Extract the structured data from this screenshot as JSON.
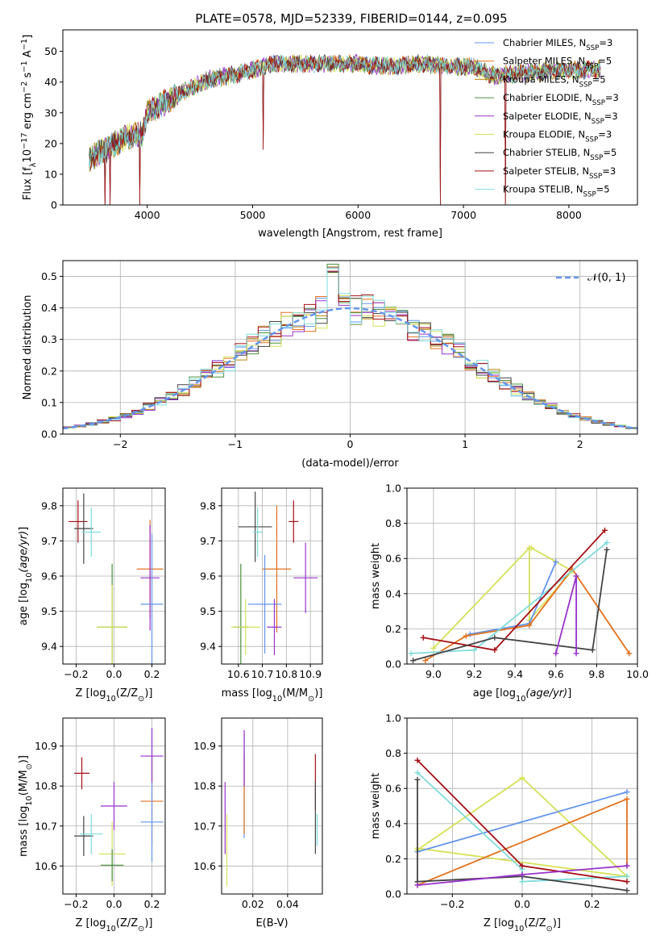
{
  "title": "PLATE=0578, MJD=52339, FIBERID=0144, z=0.095",
  "colors": {
    "Chabrier MILES": "#6495ed",
    "Salpeter MILES": "#e2711d",
    "Kroupa MILES": "#b8860b",
    "Chabrier ELODIE": "#4a8f3c",
    "Salpeter ELODIE": "#9932cc",
    "Kroupa ELODIE": "#d4e157",
    "Chabrier STELIB": "#444444",
    "Salpeter STELIB": "#a50f15",
    "Kroupa STELIB": "#7fdbdb"
  },
  "legend_spectrum": [
    {
      "name": "Chabrier MILES",
      "nssp": "3"
    },
    {
      "name": "Salpeter MILES",
      "nssp": "5"
    },
    {
      "name": "Kroupa MILES",
      "nssp": "5"
    },
    {
      "name": "Chabrier ELODIE",
      "nssp": "3"
    },
    {
      "name": "Salpeter ELODIE",
      "nssp": "3"
    },
    {
      "name": "Kroupa ELODIE",
      "nssp": "3"
    },
    {
      "name": "Chabrier STELIB",
      "nssp": "5"
    },
    {
      "name": "Salpeter STELIB",
      "nssp": "3"
    },
    {
      "name": "Kroupa STELIB",
      "nssp": "5"
    }
  ],
  "chart_data": [
    {
      "id": "spectrum",
      "type": "line",
      "title": "PLATE=0578, MJD=52339, FIBERID=0144, z=0.095",
      "xlabel": "wavelength [Angstrom, rest frame]",
      "ylabel": "Flux [f_λ10^-17 erg cm^-2 s^-1 A^-1]",
      "xlim": [
        3200,
        8650
      ],
      "ylim": [
        0,
        57
      ],
      "xticks": [
        4000,
        5000,
        6000,
        7000,
        8000
      ],
      "yticks": [
        0,
        10,
        20,
        30,
        40,
        50
      ],
      "xrange": [
        3450,
        8300
      ],
      "continuum": [
        [
          3450,
          15
        ],
        [
          3600,
          18
        ],
        [
          3800,
          22
        ],
        [
          3950,
          23
        ],
        [
          4000,
          30
        ],
        [
          4300,
          36
        ],
        [
          4600,
          41
        ],
        [
          4900,
          43
        ],
        [
          5200,
          46
        ],
        [
          5500,
          46
        ],
        [
          5800,
          46
        ],
        [
          6000,
          46
        ],
        [
          6300,
          45
        ],
        [
          6600,
          46
        ],
        [
          6900,
          45
        ],
        [
          7100,
          45
        ],
        [
          7300,
          42
        ],
        [
          7600,
          43
        ],
        [
          8000,
          44
        ],
        [
          8300,
          44
        ]
      ],
      "dips": [
        [
          3600,
          0
        ],
        [
          3650,
          0
        ],
        [
          3930,
          0
        ],
        [
          5100,
          18
        ],
        [
          6780,
          0
        ],
        [
          7400,
          0
        ]
      ],
      "grid": false
    },
    {
      "id": "residuals",
      "type": "histogram",
      "xlabel": "(data-model)/error",
      "ylabel": "Normed distribution",
      "xlim": [
        -2.5,
        2.5
      ],
      "ylim": [
        0,
        0.55
      ],
      "xticks": [
        -2,
        -1,
        0,
        1,
        2
      ],
      "yticks": [
        0,
        0.1,
        0.2,
        0.3,
        0.4,
        0.5
      ],
      "legend": "𝒩(0, 1)",
      "legend_position": "top-right",
      "grid": true,
      "bin_width": 0.1
    },
    {
      "id": "age_vs_Z",
      "type": "errorbar",
      "xlabel": "Z [log10(Z/Z⊙)]",
      "ylabel": "age  [log10(age/yr)]",
      "xlim": [
        -0.27,
        0.27
      ],
      "ylim": [
        9.35,
        9.85
      ],
      "xticks": [
        -0.2,
        0,
        0.2
      ],
      "xticklabels": [
        "−0.2",
        "0.0",
        "0.2"
      ],
      "yticks": [
        9.4,
        9.5,
        9.6,
        9.7,
        9.8
      ],
      "grid": true,
      "points": [
        {
          "s": "Salpeter STELIB",
          "x": -0.19,
          "y": 9.755,
          "ex": 0.05,
          "ey": 0.06
        },
        {
          "s": "Chabrier STELIB",
          "x": -0.16,
          "y": 9.735,
          "ex": 0.05,
          "ey": 0.1
        },
        {
          "s": "Kroupa STELIB",
          "x": -0.12,
          "y": 9.725,
          "ex": 0.05,
          "ey": 0.07
        },
        {
          "s": "Chabrier ELODIE",
          "x": -0.01,
          "y": 9.455,
          "ex": 0.08,
          "ey": 0.18
        },
        {
          "s": "Kroupa ELODIE",
          "x": -0.01,
          "y": 9.455,
          "ex": 0.08,
          "ey": 0.12
        },
        {
          "s": "Salpeter MILES",
          "x": 0.19,
          "y": 9.62,
          "ex": 0.07,
          "ey": 0.14
        },
        {
          "s": "Salpeter ELODIE",
          "x": 0.19,
          "y": 9.595,
          "ex": 0.05,
          "ey": 0.15
        },
        {
          "s": "Chabrier MILES",
          "x": 0.2,
          "y": 9.52,
          "ex": 0.06,
          "ey": 0.2
        }
      ]
    },
    {
      "id": "age_vs_mass",
      "type": "errorbar",
      "xlabel": "mass [log10(M/M⊙)]",
      "ylabel": "",
      "xlim": [
        10.53,
        10.95
      ],
      "ylim": [
        9.35,
        9.85
      ],
      "xticks": [
        10.6,
        10.7,
        10.8,
        10.9
      ],
      "yticks": [
        9.4,
        9.5,
        9.6,
        9.7,
        9.8
      ],
      "grid": true,
      "points": [
        {
          "s": "Chabrier STELIB",
          "x": 10.67,
          "y": 9.74,
          "ex": 0.07,
          "ey": 0.1
        },
        {
          "s": "Kroupa STELIB",
          "x": 10.68,
          "y": 9.725,
          "ex": 0.02,
          "ey": 0.07
        },
        {
          "s": "Salpeter STELIB",
          "x": 10.83,
          "y": 9.755,
          "ex": 0.02,
          "ey": 0.06
        },
        {
          "s": "Salpeter MILES",
          "x": 10.76,
          "y": 9.62,
          "ex": 0.06,
          "ey": 0.18
        },
        {
          "s": "Salpeter ELODIE",
          "x": 10.88,
          "y": 9.595,
          "ex": 0.05,
          "ey": 0.1
        },
        {
          "s": "Chabrier MILES",
          "x": 10.71,
          "y": 9.52,
          "ex": 0.07,
          "ey": 0.14
        },
        {
          "s": "Chabrier ELODIE",
          "x": 10.61,
          "y": 9.455,
          "ex": 0.03,
          "ey": 0.18
        },
        {
          "s": "Kroupa ELODIE",
          "x": 10.63,
          "y": 9.455,
          "ex": 0.06,
          "ey": 0.08
        },
        {
          "s": "Salpeter ELODIE",
          "x": 10.75,
          "y": 9.455,
          "ex": 0.03,
          "ey": 0.08
        }
      ]
    },
    {
      "id": "weight_vs_age",
      "type": "line",
      "xlabel": "age  [log10(age/yr)]",
      "ylabel": "mass weight",
      "xlim": [
        8.87,
        10.0
      ],
      "ylim": [
        0,
        1.0
      ],
      "xticks": [
        9.0,
        9.2,
        9.4,
        9.6,
        9.8,
        10.0
      ],
      "yticks": [
        0,
        0.2,
        0.4,
        0.6,
        0.8,
        1.0
      ],
      "grid": true,
      "series": [
        {
          "s": "Kroupa ELODIE",
          "x": [
            9.0,
            9.47,
            9.47,
            9.68,
            9.48
          ],
          "y": [
            0.09,
            0.66,
            0.25,
            0.53,
            0.66
          ]
        },
        {
          "s": "Chabrier MILES",
          "x": [
            9.18,
            9.47,
            9.6
          ],
          "y": [
            0.17,
            0.23,
            0.58
          ]
        },
        {
          "s": "Salpeter MILES",
          "x": [
            8.96,
            9.16,
            9.47,
            9.68,
            9.96
          ],
          "y": [
            0.02,
            0.16,
            0.22,
            0.54,
            0.06
          ]
        },
        {
          "s": "Kroupa STELIB",
          "x": [
            8.89,
            9.2,
            9.85
          ],
          "y": [
            0.06,
            0.08,
            0.69
          ]
        },
        {
          "s": "Salpeter STELIB",
          "x": [
            8.95,
            9.3,
            9.84
          ],
          "y": [
            0.15,
            0.08,
            0.76
          ]
        },
        {
          "s": "Chabrier STELIB",
          "x": [
            8.9,
            9.3,
            9.78,
            9.85
          ],
          "y": [
            0.02,
            0.15,
            0.08,
            0.65
          ]
        },
        {
          "s": "Salpeter ELODIE",
          "x": [
            9.6,
            9.7,
            9.7
          ],
          "y": [
            0.06,
            0.5,
            0.06
          ]
        }
      ]
    },
    {
      "id": "mass_vs_Z",
      "type": "errorbar",
      "xlabel": "Z [log10(Z/Z⊙)]",
      "ylabel": "mass [log10(M/M⊙)]",
      "xlim": [
        -0.27,
        0.27
      ],
      "ylim": [
        10.53,
        10.97
      ],
      "xticks": [
        -0.2,
        0,
        0.2
      ],
      "xticklabels": [
        "−0.2",
        "0.0",
        "0.2"
      ],
      "yticks": [
        10.6,
        10.7,
        10.8,
        10.9
      ],
      "grid": true,
      "points": [
        {
          "s": "Salpeter STELIB",
          "x": -0.17,
          "y": 10.832,
          "ex": 0.04,
          "ey": 0.04
        },
        {
          "s": "Chabrier STELIB",
          "x": -0.16,
          "y": 10.675,
          "ex": 0.05,
          "ey": 0.05
        },
        {
          "s": "Kroupa STELIB",
          "x": -0.12,
          "y": 10.68,
          "ex": 0.06,
          "ey": 0.05
        },
        {
          "s": "Salpeter ELODIE",
          "x": -0.0,
          "y": 10.75,
          "ex": 0.07,
          "ey": 0.06
        },
        {
          "s": "Kroupa ELODIE",
          "x": -0.01,
          "y": 10.63,
          "ex": 0.07,
          "ey": 0.08
        },
        {
          "s": "Chabrier ELODIE",
          "x": -0.01,
          "y": 10.602,
          "ex": 0.06,
          "ey": 0.04
        },
        {
          "s": "Salpeter MILES",
          "x": 0.2,
          "y": 10.762,
          "ex": 0.06,
          "ey": 0.11
        },
        {
          "s": "Salpeter ELODIE",
          "x": 0.2,
          "y": 10.875,
          "ex": 0.06,
          "ey": 0.07
        },
        {
          "s": "Chabrier MILES",
          "x": 0.2,
          "y": 10.71,
          "ex": 0.06,
          "ey": 0.1
        }
      ]
    },
    {
      "id": "mass_vs_ebv",
      "type": "errorbar",
      "xlabel": "E(B-V)",
      "ylabel": "",
      "xlim": [
        0.002,
        0.06
      ],
      "ylim": [
        10.53,
        10.97
      ],
      "xticks": [
        0.02,
        0.04
      ],
      "xticklabels": [
        "0.02",
        "0.04"
      ],
      "yticks": [
        10.6,
        10.7,
        10.8,
        10.9
      ],
      "grid": true,
      "points": [
        {
          "s": "Salpeter ELODIE",
          "x": 0.004,
          "y": 10.72,
          "ex": 0,
          "ey": 0.09
        },
        {
          "s": "Kroupa ELODIE",
          "x": 0.005,
          "y": 10.64,
          "ex": 0,
          "ey": 0.09
        },
        {
          "s": "Chabrier MILES",
          "x": 0.015,
          "y": 10.8,
          "ex": 0,
          "ey": 0.13
        },
        {
          "s": "Salpeter MILES",
          "x": 0.015,
          "y": 10.78,
          "ex": 0,
          "ey": 0.1
        },
        {
          "s": "Salpeter ELODIE",
          "x": 0.015,
          "y": 10.87,
          "ex": 0,
          "ey": 0.07
        },
        {
          "s": "Salpeter STELIB",
          "x": 0.056,
          "y": 10.81,
          "ex": 0,
          "ey": 0.07
        },
        {
          "s": "Chabrier STELIB",
          "x": 0.056,
          "y": 10.72,
          "ex": 0,
          "ey": 0.09
        },
        {
          "s": "Kroupa STELIB",
          "x": 0.057,
          "y": 10.69,
          "ex": 0,
          "ey": 0.04
        }
      ]
    },
    {
      "id": "weight_vs_Z",
      "type": "line",
      "xlabel": "Z [log10(Z/Z⊙)]",
      "ylabel": "mass weight",
      "xlim": [
        -0.33,
        0.33
      ],
      "ylim": [
        0,
        1.0
      ],
      "xticks": [
        -0.2,
        0,
        0.2
      ],
      "xticklabels": [
        "−0.2",
        "0.0",
        "0.2"
      ],
      "yticks": [
        0,
        0.2,
        0.4,
        0.6,
        0.8,
        1.0
      ],
      "grid": true,
      "series": [
        {
          "s": "Kroupa ELODIE",
          "x": [
            -0.3,
            0.0,
            0.3,
            -0.3
          ],
          "y": [
            0.25,
            0.66,
            0.1,
            0.26
          ]
        },
        {
          "s": "Chabrier MILES",
          "x": [
            -0.3,
            0.3
          ],
          "y": [
            0.24,
            0.58
          ]
        },
        {
          "s": "Salpeter MILES",
          "x": [
            -0.3,
            0.3,
            0.3
          ],
          "y": [
            0.05,
            0.54,
            0.16
          ]
        },
        {
          "s": "Kroupa STELIB",
          "x": [
            -0.3,
            0.0,
            0.0,
            0.3
          ],
          "y": [
            0.69,
            0.14,
            0.07,
            0.1
          ]
        },
        {
          "s": "Salpeter STELIB",
          "x": [
            -0.3,
            0.0,
            0.3
          ],
          "y": [
            0.76,
            0.16,
            0.07
          ]
        },
        {
          "s": "Chabrier STELIB",
          "x": [
            -0.3,
            -0.3,
            0.0,
            0.3
          ],
          "y": [
            0.65,
            0.07,
            0.1,
            0.02
          ]
        },
        {
          "s": "Salpeter ELODIE",
          "x": [
            -0.3,
            0.0,
            0.3
          ],
          "y": [
            0.05,
            0.11,
            0.16
          ]
        }
      ]
    }
  ]
}
